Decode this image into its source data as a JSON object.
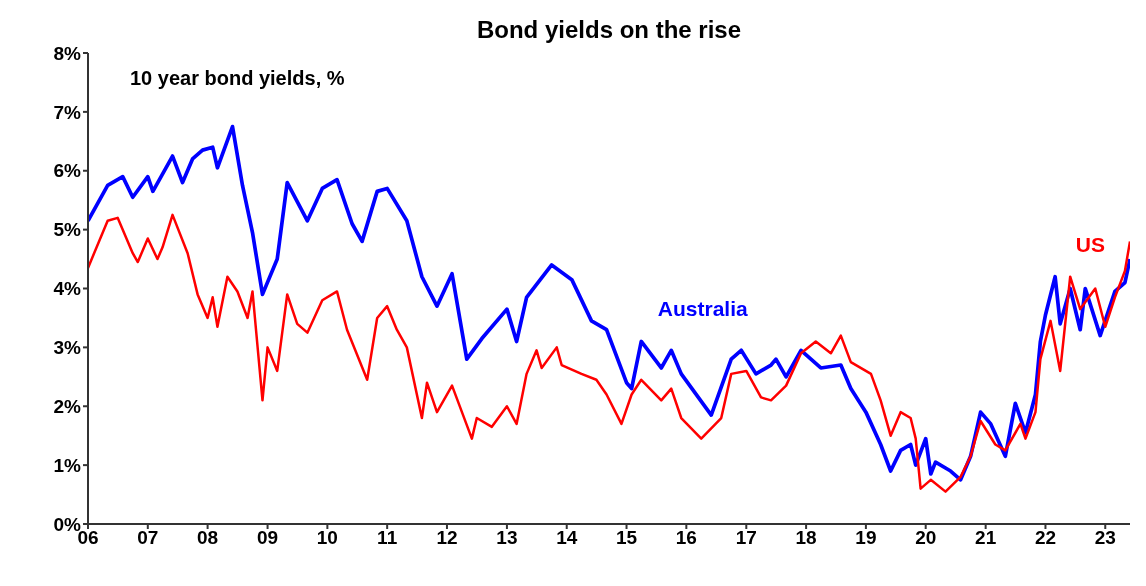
{
  "chart_data": {
    "type": "line",
    "title": "Bond yields on the rise",
    "annotations": [
      "10 year bond yields, %"
    ],
    "xlim": [
      "2006-01",
      "2023-06"
    ],
    "xticks": [
      {
        "value": "2006",
        "label": "06"
      },
      {
        "value": "2007",
        "label": "07"
      },
      {
        "value": "2008",
        "label": "08"
      },
      {
        "value": "2009",
        "label": "09"
      },
      {
        "value": "2010",
        "label": "10"
      },
      {
        "value": "2011",
        "label": "11"
      },
      {
        "value": "2012",
        "label": "12"
      },
      {
        "value": "2013",
        "label": "13"
      },
      {
        "value": "2014",
        "label": "14"
      },
      {
        "value": "2015",
        "label": "15"
      },
      {
        "value": "2016",
        "label": "16"
      },
      {
        "value": "2017",
        "label": "17"
      },
      {
        "value": "2018",
        "label": "18"
      },
      {
        "value": "2019",
        "label": "19"
      },
      {
        "value": "2020",
        "label": "20"
      },
      {
        "value": "2021",
        "label": "21"
      },
      {
        "value": "2022",
        "label": "22"
      },
      {
        "value": "2023",
        "label": "23"
      }
    ],
    "ylim": [
      0,
      8
    ],
    "yticks": [
      {
        "value": 0,
        "label": "0%"
      },
      {
        "value": 1,
        "label": "1%"
      },
      {
        "value": 2,
        "label": "2%"
      },
      {
        "value": 3,
        "label": "3%"
      },
      {
        "value": 4,
        "label": "4%"
      },
      {
        "value": 5,
        "label": "5%"
      },
      {
        "value": 6,
        "label": "6%"
      },
      {
        "value": 7,
        "label": "7%"
      },
      {
        "value": 8,
        "label": "8%"
      }
    ],
    "grid": false,
    "legend": false,
    "marker": "none",
    "line_style": "solid",
    "series": [
      {
        "name": "Australia",
        "color": "#0000ff",
        "x": [
          "2006-01",
          "2006-05",
          "2006-08",
          "2006-10",
          "2007-01",
          "2007-02",
          "2007-06",
          "2007-08",
          "2007-10",
          "2007-12",
          "2008-02",
          "2008-03",
          "2008-06",
          "2008-08",
          "2008-10",
          "2008-12",
          "2009-03",
          "2009-05",
          "2009-09",
          "2009-12",
          "2010-03",
          "2010-06",
          "2010-08",
          "2010-11",
          "2011-01",
          "2011-05",
          "2011-08",
          "2011-11",
          "2012-02",
          "2012-05",
          "2012-08",
          "2013-01",
          "2013-03",
          "2013-05",
          "2013-10",
          "2014-02",
          "2014-06",
          "2014-09",
          "2015-01",
          "2015-02",
          "2015-04",
          "2015-08",
          "2015-10",
          "2015-12",
          "2016-06",
          "2016-10",
          "2016-12",
          "2017-03",
          "2017-06",
          "2017-07",
          "2017-09",
          "2017-12",
          "2018-04",
          "2018-08",
          "2018-10",
          "2019-01",
          "2019-04",
          "2019-06",
          "2019-08",
          "2019-10",
          "2019-11",
          "2020-01",
          "2020-02",
          "2020-03",
          "2020-06",
          "2020-08",
          "2020-10",
          "2020-12",
          "2021-02",
          "2021-05",
          "2021-07",
          "2021-09",
          "2021-11",
          "2021-12",
          "2022-01",
          "2022-03",
          "2022-04",
          "2022-06",
          "2022-08",
          "2022-09",
          "2022-12",
          "2023-03",
          "2023-05",
          "2023-06"
        ],
        "values": [
          5.15,
          5.75,
          5.9,
          5.55,
          5.9,
          5.65,
          6.25,
          5.8,
          6.2,
          6.35,
          6.4,
          6.05,
          6.75,
          5.75,
          4.95,
          3.9,
          4.5,
          5.8,
          5.15,
          5.7,
          5.85,
          5.1,
          4.8,
          5.65,
          5.7,
          5.15,
          4.2,
          3.7,
          4.25,
          2.8,
          3.15,
          3.65,
          3.1,
          3.85,
          4.4,
          4.15,
          3.45,
          3.3,
          2.4,
          2.3,
          3.1,
          2.65,
          2.95,
          2.55,
          1.85,
          2.8,
          2.95,
          2.55,
          2.7,
          2.8,
          2.5,
          2.95,
          2.65,
          2.7,
          2.3,
          1.9,
          1.35,
          0.9,
          1.25,
          1.35,
          1.0,
          1.45,
          0.85,
          1.05,
          0.9,
          0.75,
          1.15,
          1.9,
          1.7,
          1.15,
          2.05,
          1.55,
          2.2,
          3.1,
          3.55,
          4.2,
          3.4,
          4.0,
          3.3,
          4.0,
          3.2,
          3.95,
          4.1,
          4.5
        ]
      },
      {
        "name": "US",
        "color": "#ff0000",
        "x": [
          "2006-01",
          "2006-05",
          "2006-07",
          "2006-10",
          "2006-11",
          "2007-01",
          "2007-03",
          "2007-04",
          "2007-06",
          "2007-09",
          "2007-11",
          "2008-01",
          "2008-02",
          "2008-03",
          "2008-05",
          "2008-07",
          "2008-09",
          "2008-10",
          "2008-12",
          "2009-01",
          "2009-03",
          "2009-05",
          "2009-07",
          "2009-09",
          "2009-12",
          "2010-03",
          "2010-05",
          "2010-09",
          "2010-11",
          "2011-01",
          "2011-03",
          "2011-05",
          "2011-08",
          "2011-09",
          "2011-11",
          "2012-02",
          "2012-06",
          "2012-07",
          "2012-10",
          "2013-01",
          "2013-03",
          "2013-05",
          "2013-07",
          "2013-08",
          "2013-11",
          "2013-12",
          "2014-04",
          "2014-07",
          "2014-09",
          "2014-12",
          "2015-02",
          "2015-04",
          "2015-08",
          "2015-10",
          "2015-12",
          "2016-04",
          "2016-08",
          "2016-10",
          "2017-01",
          "2017-04",
          "2017-06",
          "2017-09",
          "2017-12",
          "2018-03",
          "2018-06",
          "2018-08",
          "2018-10",
          "2019-02",
          "2019-04",
          "2019-06",
          "2019-08",
          "2019-10",
          "2019-11",
          "2019-12",
          "2020-02",
          "2020-05",
          "2020-08",
          "2020-10",
          "2020-12",
          "2021-03",
          "2021-05",
          "2021-08",
          "2021-09",
          "2021-11",
          "2021-12",
          "2022-02",
          "2022-04",
          "2022-06",
          "2022-08",
          "2022-11",
          "2023-01",
          "2023-03",
          "2023-05",
          "2023-06"
        ],
        "values": [
          4.35,
          5.15,
          5.2,
          4.6,
          4.45,
          4.85,
          4.5,
          4.7,
          5.25,
          4.6,
          3.9,
          3.5,
          3.85,
          3.35,
          4.2,
          3.95,
          3.5,
          3.95,
          2.1,
          3.0,
          2.6,
          3.9,
          3.4,
          3.25,
          3.8,
          3.95,
          3.3,
          2.45,
          3.5,
          3.7,
          3.3,
          3.0,
          1.8,
          2.4,
          1.9,
          2.35,
          1.45,
          1.8,
          1.65,
          2.0,
          1.7,
          2.55,
          2.95,
          2.65,
          3.0,
          2.7,
          2.55,
          2.45,
          2.2,
          1.7,
          2.2,
          2.45,
          2.1,
          2.3,
          1.8,
          1.45,
          1.8,
          2.55,
          2.6,
          2.15,
          2.1,
          2.35,
          2.9,
          3.1,
          2.9,
          3.2,
          2.75,
          2.55,
          2.1,
          1.5,
          1.9,
          1.8,
          1.45,
          0.6,
          0.75,
          0.55,
          0.8,
          1.15,
          1.75,
          1.35,
          1.25,
          1.7,
          1.45,
          1.9,
          2.8,
          3.45,
          2.6,
          4.2,
          3.65,
          4.0,
          3.35,
          3.85,
          4.3,
          4.8
        ]
      }
    ]
  }
}
